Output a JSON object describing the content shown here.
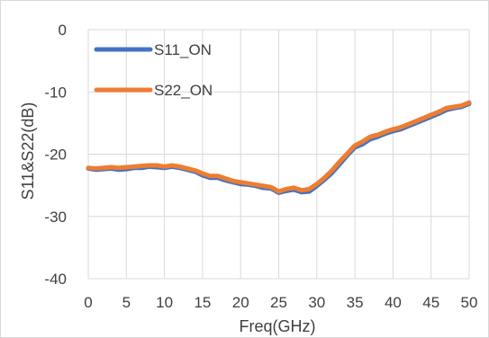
{
  "chart_data": {
    "type": "line",
    "title": "",
    "xlabel": "Freq(GHz)",
    "ylabel": "S11&S22(dB)",
    "xlim": [
      0,
      50
    ],
    "ylim": [
      -40,
      0
    ],
    "x_ticks": [
      "0",
      "5",
      "10",
      "15",
      "20",
      "25",
      "30",
      "35",
      "40",
      "45",
      "50"
    ],
    "y_ticks": [
      "0",
      "-10",
      "-20",
      "-30",
      "-40"
    ],
    "grid": true,
    "legend_position": "top-left",
    "x": [
      0,
      1,
      2,
      3,
      4,
      5,
      6,
      7,
      8,
      9,
      10,
      11,
      12,
      13,
      14,
      15,
      16,
      17,
      18,
      19,
      20,
      21,
      22,
      23,
      24,
      25,
      26,
      27,
      28,
      29,
      30,
      31,
      32,
      33,
      34,
      35,
      36,
      37,
      38,
      39,
      40,
      41,
      42,
      43,
      44,
      45,
      46,
      47,
      48,
      49,
      50
    ],
    "series": [
      {
        "name": "S11_ON",
        "color": "#4472C4",
        "values": [
          -22.3,
          -22.5,
          -22.4,
          -22.3,
          -22.5,
          -22.4,
          -22.2,
          -22.2,
          -22.0,
          -22.1,
          -22.2,
          -22.0,
          -22.2,
          -22.5,
          -22.8,
          -23.4,
          -23.8,
          -23.8,
          -24.2,
          -24.5,
          -24.8,
          -24.9,
          -25.1,
          -25.4,
          -25.5,
          -26.2,
          -25.9,
          -25.7,
          -26.1,
          -26.0,
          -25.1,
          -24.1,
          -23.0,
          -21.6,
          -20.2,
          -18.9,
          -18.4,
          -17.6,
          -17.2,
          -16.7,
          -16.3,
          -16.0,
          -15.5,
          -15.0,
          -14.5,
          -14.0,
          -13.5,
          -12.9,
          -12.6,
          -12.4,
          -11.9
        ]
      },
      {
        "name": "S22_ON",
        "color": "#ED7D31",
        "values": [
          -22.2,
          -22.3,
          -22.2,
          -22.1,
          -22.2,
          -22.1,
          -22.0,
          -21.9,
          -21.8,
          -21.8,
          -22.0,
          -21.8,
          -22.0,
          -22.3,
          -22.6,
          -23.1,
          -23.5,
          -23.5,
          -23.9,
          -24.3,
          -24.5,
          -24.7,
          -24.9,
          -25.1,
          -25.3,
          -26.0,
          -25.6,
          -25.4,
          -25.8,
          -25.6,
          -24.8,
          -23.8,
          -22.6,
          -21.2,
          -19.9,
          -18.6,
          -18.0,
          -17.2,
          -16.9,
          -16.4,
          -16.0,
          -15.7,
          -15.2,
          -14.7,
          -14.2,
          -13.7,
          -13.2,
          -12.6,
          -12.4,
          -12.2,
          -11.7
        ]
      }
    ]
  }
}
